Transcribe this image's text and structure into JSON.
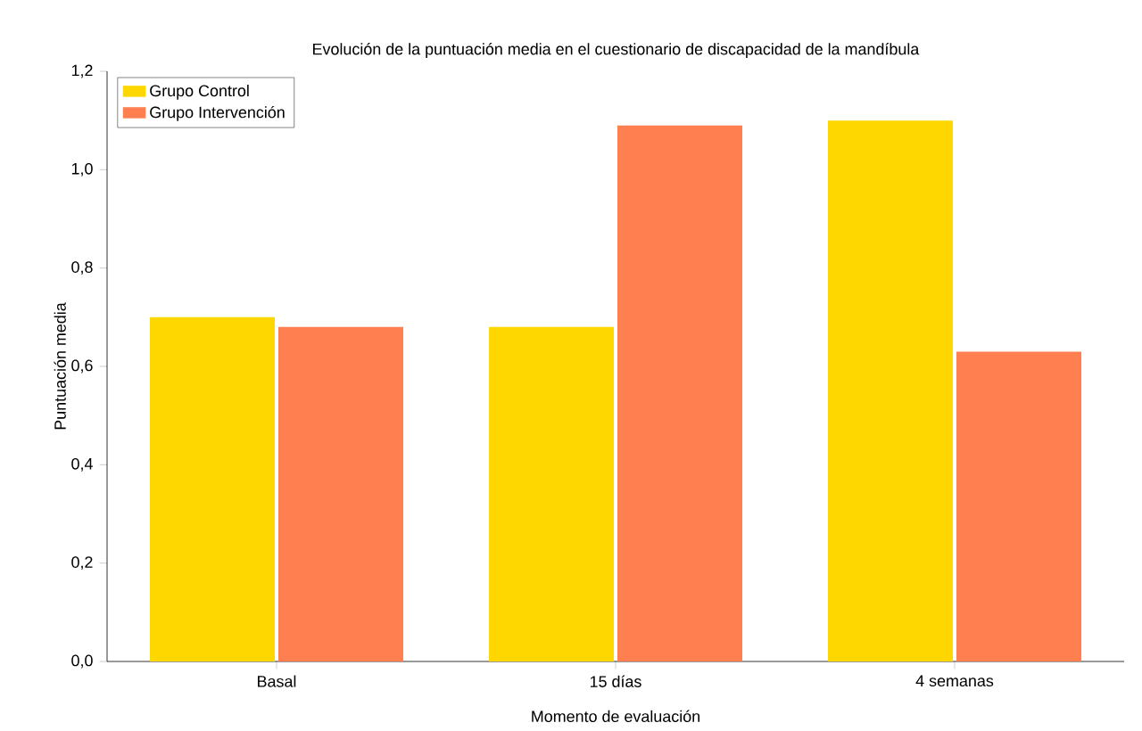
{
  "chart_data": {
    "type": "bar",
    "title": "Evolución de la puntuación media en el cuestionario de discapacidad de la mandíbula",
    "xlabel": "Momento de evaluación",
    "ylabel": "Puntuación media",
    "categories": [
      "Basal",
      "15 días",
      "4 semanas"
    ],
    "series": [
      {
        "name": "Grupo Control",
        "color": "#ffd700",
        "values": [
          0.7,
          0.68,
          1.1
        ]
      },
      {
        "name": "Grupo Intervención",
        "color": "#ff7f50",
        "values": [
          0.68,
          1.09,
          0.63
        ]
      }
    ],
    "ylim": [
      0,
      1.2
    ],
    "yticks": [
      {
        "value": 0,
        "label": "0,0"
      },
      {
        "value": 0.2,
        "label": "0,2"
      },
      {
        "value": 0.4,
        "label": "0,4"
      },
      {
        "value": 0.6,
        "label": "0,6"
      },
      {
        "value": 0.8,
        "label": "0,8"
      },
      {
        "value": 1.0,
        "label": "1,0"
      },
      {
        "value": 1.2,
        "label": "1,2"
      }
    ],
    "legend": "top left",
    "grid": false
  }
}
